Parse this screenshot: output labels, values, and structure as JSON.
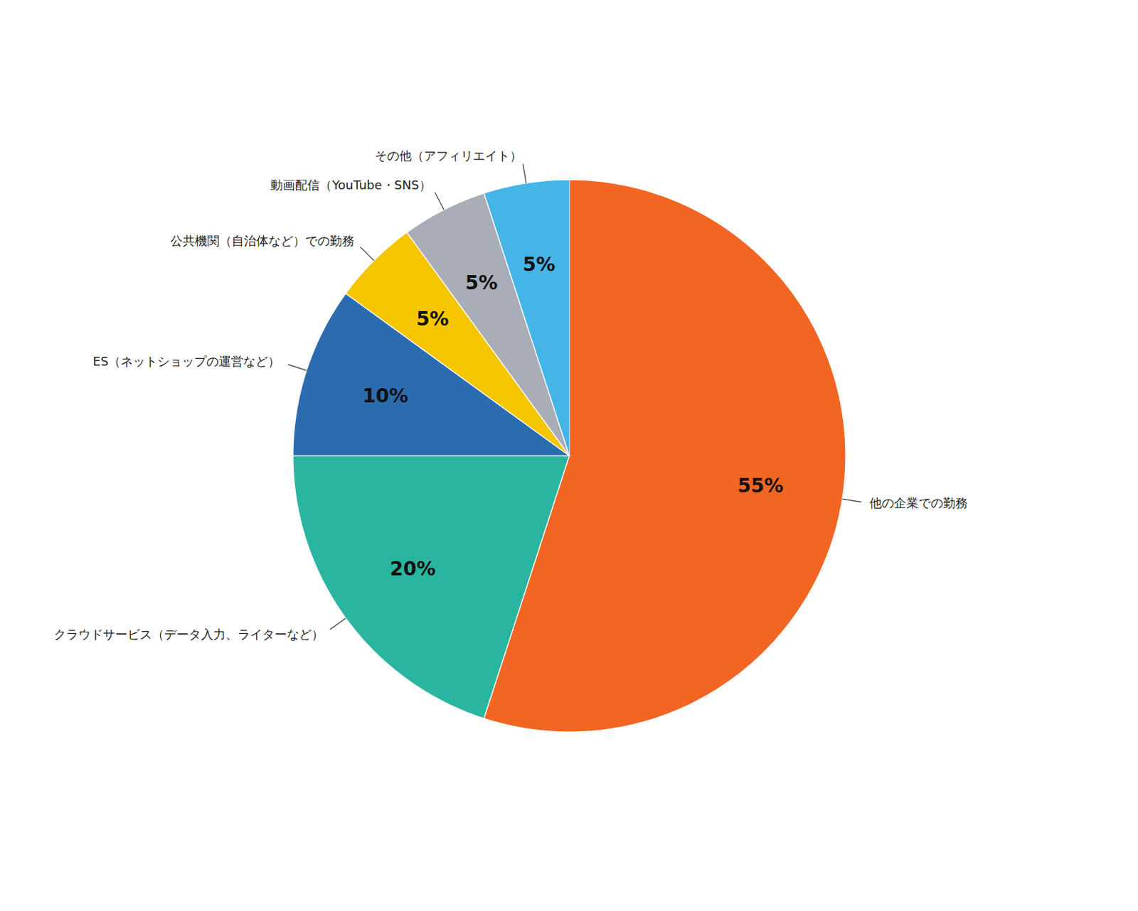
{
  "chart_data": {
    "type": "pie",
    "categories": [
      "他の企業での勤務",
      "クラウドサービス（データ入力、ライターなど）",
      "ES（ネットショップの運営など）",
      "公共機関（自治体など）での勤務",
      "動画配信（YouTube・SNS）",
      "その他（アフィリエイト）"
    ],
    "values": [
      55,
      20,
      10,
      5,
      5,
      5
    ],
    "value_labels": [
      "55%",
      "20%",
      "10%",
      "5%",
      "5%",
      "5%"
    ],
    "colors": [
      "#F26522",
      "#2AB5A0",
      "#2B6CB0",
      "#F5C500",
      "#A8ADB8",
      "#45B5E8"
    ],
    "data_labels": true
  }
}
